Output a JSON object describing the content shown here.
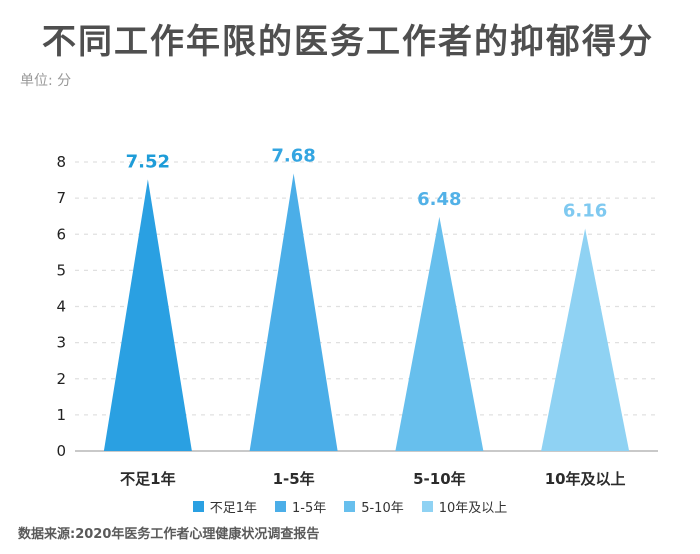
{
  "chart_data": {
    "type": "bar",
    "shape": "triangle",
    "title": "不同工作年限的医务工作者的抑郁得分",
    "unit_label": "单位: 分",
    "categories": [
      "不足1年",
      "1-5年",
      "5-10年",
      "10年及以上"
    ],
    "values": [
      7.52,
      7.68,
      6.48,
      6.16
    ],
    "value_labels": [
      "7.52",
      "7.68",
      "6.48",
      "6.16"
    ],
    "series_colors": [
      "#2AA0E2",
      "#4BAEE8",
      "#67BFED",
      "#8FD2F3"
    ],
    "value_label_colors": [
      "#1E9CD8",
      "#33A5E1",
      "#52B1E7",
      "#7FC9F0"
    ],
    "ylim": [
      0,
      8
    ],
    "yticks": [
      0,
      1,
      2,
      3,
      4,
      5,
      6,
      7,
      8
    ],
    "grid": "horizontal-dashed",
    "grid_color": "#e0e0e0",
    "axis_color": "#c9c9c9",
    "legend_position": "bottom",
    "legend": [
      "不足1年",
      "1-5年",
      "5-10年",
      "10年及以上"
    ],
    "source": "数据来源:2020年医务工作者心理健康状况调查报告"
  }
}
